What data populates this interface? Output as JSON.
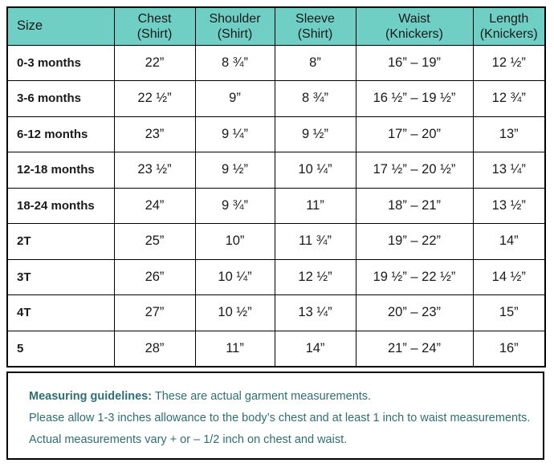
{
  "table": {
    "columns": [
      {
        "title": "Size",
        "sub": ""
      },
      {
        "title": "Chest",
        "sub": "(Shirt)"
      },
      {
        "title": "Shoulder",
        "sub": "(Shirt)"
      },
      {
        "title": "Sleeve",
        "sub": "(Shirt)"
      },
      {
        "title": "Waist",
        "sub": "(Knickers)"
      },
      {
        "title": "Length",
        "sub": "(Knickers)"
      }
    ],
    "rows": [
      {
        "size": "0-3 months",
        "values": [
          "22”",
          "8 ¾”",
          "8”",
          "16” – 19”",
          "12 ½”"
        ]
      },
      {
        "size": "3-6 months",
        "values": [
          "22 ½”",
          "9”",
          "8 ¾”",
          "16 ½” – 19 ½”",
          "12 ¾”"
        ]
      },
      {
        "size": "6-12 months",
        "values": [
          "23”",
          "9 ¼”",
          "9 ½”",
          "17” – 20”",
          "13”"
        ]
      },
      {
        "size": "12-18 months",
        "values": [
          "23 ½”",
          "9 ½”",
          "10 ¼”",
          "17 ½” – 20 ½”",
          "13 ¼”"
        ]
      },
      {
        "size": "18-24 months",
        "values": [
          "24”",
          "9 ¾”",
          "11”",
          "18” – 21”",
          "13 ½”"
        ]
      },
      {
        "size": "2T",
        "values": [
          "25”",
          "10”",
          "11 ¾”",
          "19” – 22”",
          "14”"
        ]
      },
      {
        "size": "3T",
        "values": [
          "26”",
          "10 ¼”",
          "12 ½”",
          "19 ½” – 22 ½”",
          "14 ½”"
        ]
      },
      {
        "size": "4T",
        "values": [
          "27”",
          "10 ½”",
          "13 ¼”",
          "20” – 23”",
          "15”"
        ]
      },
      {
        "size": "5",
        "values": [
          "28”",
          "11”",
          "14”",
          "21” – 24”",
          "16”"
        ]
      }
    ]
  },
  "notes": {
    "heading": "Measuring guidelines:",
    "line1": "These are actual garment measurements.",
    "line2": "Please allow 1-3 inches allowance to the body’s chest and at least 1 inch to waist measurements.",
    "line3": "Actual measurements vary + or – 1/2 inch on chest and waist."
  },
  "colors": {
    "header_bg": "#6FCFC5",
    "note_text": "#2E6F72",
    "border": "#000000"
  }
}
